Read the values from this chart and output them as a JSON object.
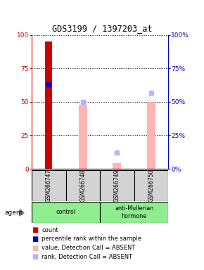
{
  "title": "GDS3199 / 1397203_at",
  "samples": [
    "GSM266747",
    "GSM266748",
    "GSM266749",
    "GSM266750"
  ],
  "ylim": [
    0,
    100
  ],
  "yticks": [
    0,
    25,
    50,
    75,
    100
  ],
  "count_values": [
    95,
    0,
    0,
    0
  ],
  "count_color": "#cc0000",
  "rank_values": [
    63,
    0,
    0,
    0
  ],
  "rank_color": "#0000cc",
  "absent_bar_values": [
    0,
    48,
    4,
    50
  ],
  "absent_bar_color": "#ffb3b3",
  "absent_rank_values": [
    0,
    50,
    12,
    57
  ],
  "absent_rank_color": "#b3b3ff",
  "left_axis_color": "#cc0000",
  "right_axis_color": "#0000cc",
  "label_fontsize": 6.5,
  "title_fontsize": 8.5,
  "sample_bg": "#d3d3d3",
  "control_bg": "#90ee90",
  "legend_fontsize": 6.0
}
